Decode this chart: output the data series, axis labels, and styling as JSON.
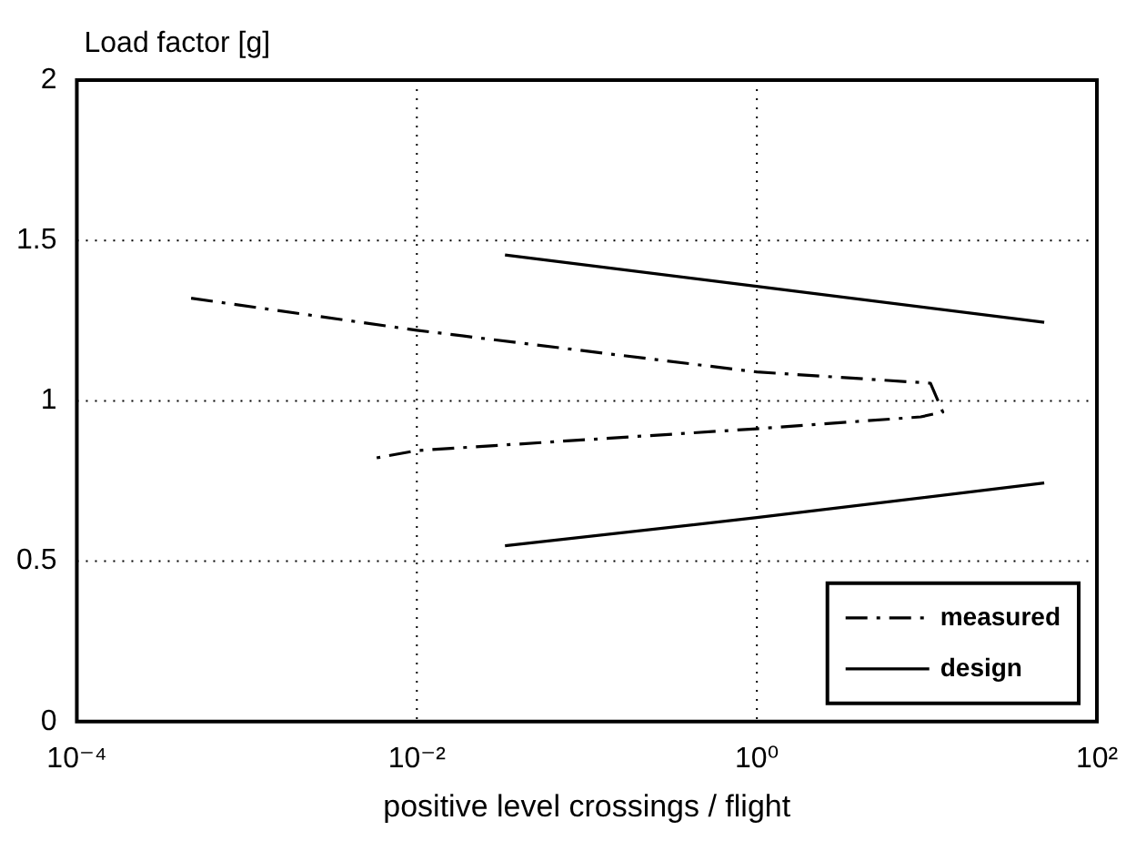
{
  "chart_data": {
    "type": "line",
    "xlabel": "positive level crossings / flight",
    "ylabel": "Load factor [g]",
    "log": "x",
    "xlim": [
      0.0001,
      100
    ],
    "xticks": [
      {
        "value": 0.0001,
        "label": "10⁻⁴"
      },
      {
        "value": 0.01,
        "label": "10⁻²"
      },
      {
        "value": 1,
        "label": "10⁰"
      },
      {
        "value": 100,
        "label": "10²"
      }
    ],
    "ylim": [
      0,
      2
    ],
    "yticks": [
      0,
      0.5,
      1,
      1.5,
      2
    ],
    "grid": true,
    "legend": "bottom right",
    "marker": "none",
    "series": [
      {
        "name": "measured",
        "color": "#000000",
        "line_style": "dashed",
        "x": [
          0.00047,
          0.01,
          1,
          10.5,
          12.4,
          9.2,
          1,
          0.01,
          0.0055
        ],
        "values": [
          1.32,
          1.22,
          1.09,
          1.055,
          0.965,
          0.95,
          0.913,
          0.845,
          0.82
        ]
      },
      {
        "name": "design",
        "color": "#000000",
        "line_style": "solid",
        "x": [
          0.033,
          1,
          49
        ],
        "values": [
          1.455,
          1.357,
          1.245
        ]
      },
      {
        "color": "#000000",
        "line_style": "solid",
        "x": [
          0.033,
          1,
          49
        ],
        "values": [
          0.548,
          0.636,
          0.744
        ]
      }
    ]
  }
}
